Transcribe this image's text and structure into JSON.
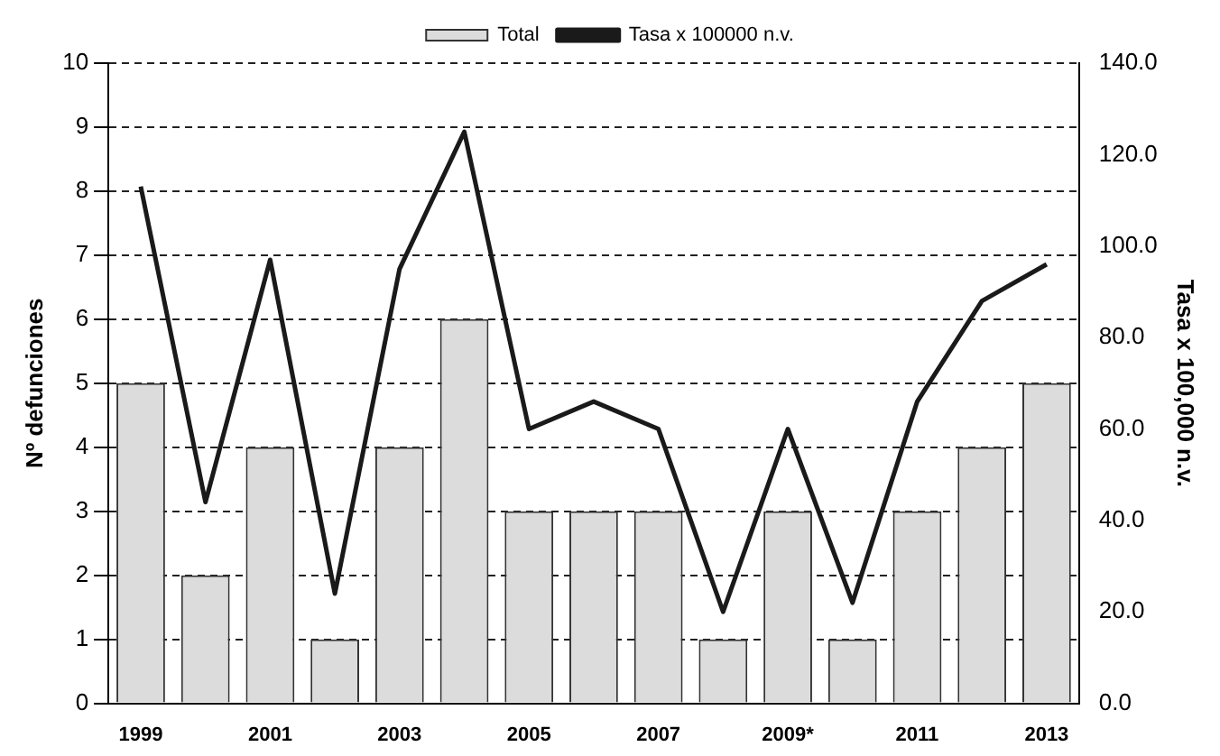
{
  "chart_data": {
    "type": "bar",
    "categories": [
      "1999",
      null,
      "2001",
      null,
      "2003",
      null,
      "2005",
      null,
      "2007",
      null,
      "2009*",
      null,
      "2011",
      null,
      "2013"
    ],
    "ylabel": "Nº defunciones",
    "y2label": "Tasa x 100,000 n.v.",
    "series": [
      {
        "name": "Total",
        "color": "#dcdcdc",
        "values": [
          5,
          2,
          4,
          1,
          4,
          6,
          3,
          3,
          3,
          1,
          3,
          1,
          3,
          4,
          5
        ]
      },
      {
        "name": "Tasa x 100000 n.v.",
        "type": "line",
        "axis": "y2",
        "color": "#1a1a1a",
        "values": [
          113,
          44,
          97,
          24,
          95,
          125,
          60,
          66,
          60,
          20,
          60,
          22,
          66,
          88,
          96
        ]
      }
    ],
    "ylim": [
      0,
      10
    ],
    "yticks": [
      0,
      1,
      2,
      3,
      4,
      5,
      6,
      7,
      8,
      9,
      10
    ],
    "y2lim": [
      0,
      140
    ],
    "y2ticks": [
      {
        "value": 0,
        "label": "0.0"
      },
      {
        "value": 20,
        "label": "20.0"
      },
      {
        "value": 40,
        "label": "40.0"
      },
      {
        "value": 60,
        "label": "60.0"
      },
      {
        "value": 80,
        "label": "80.0"
      },
      {
        "value": 100,
        "label": "100.0"
      },
      {
        "value": 120,
        "label": "120.0"
      },
      {
        "value": 140,
        "label": "140.0"
      }
    ],
    "grid": "y",
    "legend": "top",
    "marker": "none",
    "line_style": "solid"
  }
}
